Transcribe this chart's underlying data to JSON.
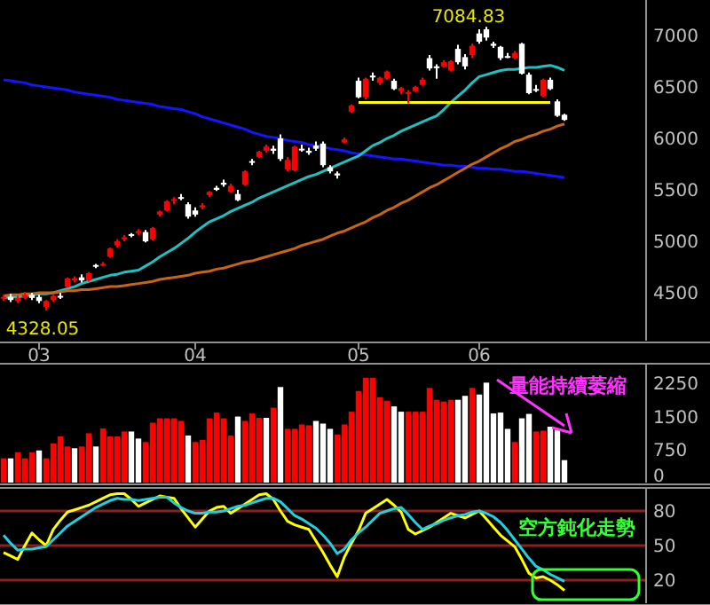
{
  "chart_data": [
    {
      "type": "candlestick",
      "categories": [
        null,
        null,
        null,
        null,
        null,
        "03",
        null,
        null,
        null,
        null,
        null,
        null,
        null,
        null,
        null,
        null,
        null,
        null,
        null,
        null,
        null,
        null,
        null,
        null,
        null,
        null,
        null,
        "04",
        null,
        null,
        null,
        null,
        null,
        null,
        null,
        null,
        null,
        null,
        null,
        null,
        null,
        null,
        null,
        null,
        null,
        null,
        null,
        null,
        null,
        null,
        "05",
        null,
        null,
        null,
        null,
        null,
        null,
        null,
        null,
        null,
        null,
        null,
        null,
        null,
        null,
        null,
        null,
        "06",
        null,
        null,
        null,
        null,
        null,
        null,
        null,
        null,
        null,
        null,
        null,
        null
      ],
      "ohlc": [
        [
          4450,
          4480,
          4420,
          4460
        ],
        [
          4460,
          4490,
          4410,
          4430
        ],
        [
          4420,
          4470,
          4400,
          4450
        ],
        [
          4450,
          4510,
          4440,
          4480
        ],
        [
          4480,
          4500,
          4430,
          4450
        ],
        [
          4460,
          4480,
          4400,
          4420
        ],
        [
          4360,
          4430,
          4328.05,
          4420
        ],
        [
          4430,
          4480,
          4410,
          4470
        ],
        [
          4470,
          4500,
          4440,
          4460
        ],
        [
          4560,
          4650,
          4550,
          4640
        ],
        [
          4620,
          4660,
          4600,
          4640
        ],
        [
          4650,
          4680,
          4600,
          4620
        ],
        [
          4620,
          4700,
          4610,
          4690
        ],
        [
          4770,
          4780,
          4740,
          4760
        ],
        [
          4770,
          4800,
          4760,
          4780
        ],
        [
          4850,
          4940,
          4840,
          4930
        ],
        [
          4960,
          5020,
          4940,
          5000
        ],
        [
          5020,
          5060,
          5000,
          5040
        ],
        [
          5070,
          5080,
          5040,
          5060
        ],
        [
          5080,
          5120,
          5060,
          5100
        ],
        [
          5090,
          5110,
          4990,
          5000
        ],
        [
          5020,
          5140,
          5010,
          5130
        ],
        [
          5260,
          5300,
          5240,
          5290
        ],
        [
          5300,
          5400,
          5290,
          5390
        ],
        [
          5400,
          5430,
          5360,
          5410
        ],
        [
          5430,
          5460,
          5400,
          5420
        ],
        [
          5360,
          5380,
          5220,
          5240
        ],
        [
          5300,
          5330,
          5240,
          5260
        ],
        [
          5330,
          5370,
          5310,
          5350
        ],
        [
          5450,
          5490,
          5430,
          5480
        ],
        [
          5520,
          5540,
          5490,
          5500
        ],
        [
          5570,
          5600,
          5530,
          5550
        ],
        [
          5480,
          5560,
          5470,
          5540
        ],
        [
          5460,
          5500,
          5390,
          5400
        ],
        [
          5550,
          5690,
          5540,
          5680
        ],
        [
          5780,
          5800,
          5740,
          5770
        ],
        [
          5820,
          5880,
          5810,
          5870
        ],
        [
          5880,
          5940,
          5860,
          5920
        ],
        [
          5900,
          5930,
          5850,
          5880
        ],
        [
          6000,
          6040,
          5780,
          5800
        ],
        [
          5700,
          5820,
          5680,
          5790
        ],
        [
          5690,
          5930,
          5680,
          5920
        ],
        [
          5900,
          5940,
          5870,
          5890
        ],
        [
          5880,
          5910,
          5840,
          5860
        ],
        [
          5930,
          5970,
          5880,
          5900
        ],
        [
          5950,
          5970,
          5720,
          5740
        ],
        [
          5720,
          5740,
          5660,
          5680
        ],
        [
          5660,
          5680,
          5610,
          5640
        ],
        [
          5960,
          6010,
          5950,
          5990
        ],
        [
          6260,
          6330,
          6250,
          6320
        ],
        [
          6560,
          6590,
          6390,
          6400
        ],
        [
          6400,
          6590,
          6380,
          6580
        ],
        [
          6610,
          6640,
          6560,
          6600
        ],
        [
          6540,
          6600,
          6520,
          6590
        ],
        [
          6580,
          6660,
          6570,
          6650
        ],
        [
          6560,
          6580,
          6470,
          6480
        ],
        [
          6460,
          6500,
          6430,
          6490
        ],
        [
          6440,
          6470,
          6340,
          6450
        ],
        [
          6460,
          6510,
          6450,
          6500
        ],
        [
          6520,
          6590,
          6510,
          6570
        ],
        [
          6780,
          6810,
          6660,
          6680
        ],
        [
          6700,
          6720,
          6580,
          6690
        ],
        [
          6700,
          6760,
          6690,
          6740
        ],
        [
          6660,
          6760,
          6650,
          6750
        ],
        [
          6870,
          6910,
          6720,
          6740
        ],
        [
          6790,
          6820,
          6670,
          6700
        ],
        [
          6810,
          6920,
          6780,
          6900
        ],
        [
          7020,
          7060,
          6920,
          6940
        ],
        [
          7060,
          7084.83,
          6950,
          6980
        ],
        [
          6920,
          6940,
          6880,
          6900
        ],
        [
          6890,
          6900,
          6760,
          6780
        ],
        [
          6800,
          6830,
          6780,
          6790
        ],
        [
          6780,
          6850,
          6770,
          6830
        ],
        [
          6920,
          6930,
          6620,
          6630
        ],
        [
          6620,
          6640,
          6430,
          6440
        ],
        [
          6480,
          6520,
          6450,
          6470
        ],
        [
          6410,
          6580,
          6400,
          6570
        ],
        [
          6570,
          6590,
          6470,
          6480
        ],
        [
          6360,
          6380,
          6210,
          6220
        ],
        [
          6230,
          6240,
          6170,
          6180
        ]
      ],
      "series": [
        {
          "type": "line",
          "color": "#1414ff",
          "values": [
            6570,
            6560,
            6550,
            6540,
            6520,
            6510,
            6500,
            6490,
            6480,
            6470,
            6450,
            6440,
            6430,
            6420,
            6410,
            6400,
            6380,
            6370,
            6360,
            6350,
            6340,
            6330,
            6310,
            6300,
            6290,
            6280,
            6260,
            6240,
            6210,
            6190,
            6170,
            6150,
            6130,
            6110,
            6090,
            6060,
            6040,
            6020,
            6010,
            6000,
            5980,
            5970,
            5960,
            5940,
            5930,
            5920,
            5900,
            5890,
            5880,
            5860,
            5850,
            5840,
            5830,
            5820,
            5810,
            5800,
            5800,
            5790,
            5780,
            5770,
            5760,
            5750,
            5740,
            5740,
            5730,
            5730,
            5720,
            5710,
            5710,
            5700,
            5700,
            5690,
            5680,
            5680,
            5670,
            5660,
            5650,
            5640,
            5630,
            5620
          ]
        },
        {
          "type": "line",
          "color": "#20c0c0",
          "values": [
            4450,
            4460,
            4460,
            4470,
            4480,
            4490,
            4490,
            4500,
            4520,
            4540,
            4560,
            4590,
            4610,
            4630,
            4650,
            4670,
            4680,
            4700,
            4710,
            4720,
            4760,
            4800,
            4850,
            4890,
            4930,
            4980,
            5030,
            5090,
            5140,
            5190,
            5220,
            5250,
            5290,
            5320,
            5350,
            5380,
            5420,
            5450,
            5480,
            5510,
            5540,
            5570,
            5600,
            5630,
            5650,
            5680,
            5710,
            5740,
            5770,
            5800,
            5830,
            5880,
            5930,
            5960,
            6000,
            6030,
            6070,
            6100,
            6130,
            6160,
            6190,
            6220,
            6280,
            6350,
            6410,
            6470,
            6540,
            6600,
            6620,
            6640,
            6660,
            6670,
            6670,
            6680,
            6690,
            6690,
            6700,
            6710,
            6690,
            6660
          ]
        },
        {
          "type": "line",
          "color": "#c86414",
          "values": [
            4470,
            4480,
            4480,
            4490,
            4490,
            4500,
            4500,
            4500,
            4510,
            4520,
            4520,
            4530,
            4530,
            4540,
            4550,
            4560,
            4560,
            4570,
            4580,
            4590,
            4600,
            4610,
            4630,
            4640,
            4650,
            4660,
            4670,
            4690,
            4700,
            4710,
            4730,
            4740,
            4760,
            4780,
            4800,
            4810,
            4830,
            4850,
            4870,
            4890,
            4910,
            4930,
            4960,
            4980,
            5000,
            5020,
            5050,
            5080,
            5100,
            5130,
            5160,
            5190,
            5230,
            5260,
            5300,
            5330,
            5370,
            5400,
            5440,
            5480,
            5520,
            5550,
            5590,
            5630,
            5670,
            5710,
            5750,
            5780,
            5820,
            5860,
            5900,
            5930,
            5970,
            5990,
            6020,
            6040,
            6070,
            6090,
            6120,
            6140
          ]
        },
        {
          "type": "line",
          "color": "#ffff00",
          "values": [
            null,
            null,
            null,
            null,
            null,
            null,
            null,
            null,
            null,
            null,
            null,
            null,
            null,
            null,
            null,
            null,
            null,
            null,
            null,
            null,
            null,
            null,
            null,
            null,
            null,
            null,
            null,
            null,
            null,
            null,
            null,
            null,
            null,
            null,
            null,
            null,
            null,
            null,
            null,
            null,
            null,
            null,
            null,
            null,
            null,
            null,
            null,
            null,
            null,
            null,
            6350,
            6350,
            6350,
            6350,
            6350,
            6350,
            6350,
            6350,
            6350,
            6350,
            6350,
            6350,
            6350,
            6350,
            6350,
            6350,
            6350,
            6350,
            6350,
            6350,
            6350,
            6350,
            6350,
            6350,
            6350,
            6350,
            6350,
            6350,
            null,
            null
          ]
        }
      ],
      "ylim": [
        4035,
        7345
      ],
      "yticks": [
        4500,
        5000,
        5500,
        6000,
        6500,
        7000
      ],
      "annotations": [
        {
          "text": "7084.83",
          "x": "06",
          "y": 7084.83
        },
        {
          "text": "4328.05",
          "x": "03",
          "y": 4328.05
        }
      ]
    },
    {
      "type": "bar",
      "categories": [
        null,
        null,
        null,
        null,
        null,
        null,
        null,
        null,
        null,
        null,
        null,
        null,
        null,
        null,
        null,
        null,
        null,
        null,
        null,
        null,
        null,
        null,
        null,
        null,
        null,
        null,
        null,
        null,
        null,
        null,
        null,
        null,
        null,
        null,
        null,
        null,
        null,
        null,
        null,
        null,
        null,
        null,
        null,
        null,
        null,
        null,
        null,
        null,
        null,
        null,
        null,
        null,
        null,
        null,
        null,
        null,
        null,
        null,
        null,
        null,
        null,
        null,
        null,
        null,
        null,
        null,
        null,
        null,
        null,
        null,
        null,
        null,
        null,
        null,
        null,
        null,
        null,
        null,
        null,
        null
      ],
      "values": [
        550,
        550,
        690,
        550,
        690,
        730,
        550,
        890,
        1050,
        820,
        780,
        820,
        1120,
        820,
        1230,
        1050,
        1050,
        1160,
        1160,
        1000,
        920,
        1360,
        1460,
        1460,
        1460,
        1400,
        1070,
        920,
        970,
        1460,
        1590,
        1460,
        1070,
        1500,
        1400,
        1570,
        1470,
        1470,
        1700,
        2170,
        1220,
        1220,
        1320,
        1300,
        1400,
        1340,
        1220,
        1090,
        1320,
        1610,
        2080,
        2380,
        2380,
        1940,
        1860,
        1730,
        1610,
        1610,
        1610,
        1610,
        2150,
        1880,
        1840,
        1880,
        1880,
        1970,
        2150,
        2000,
        2270,
        1570,
        1590,
        1220,
        920,
        1460,
        1560,
        1160,
        1180,
        1270,
        1200,
        510
      ],
      "colors": [
        "#ff0000",
        "#ffffff",
        "#ff0000",
        "#ff0000",
        "#ff0000",
        "#ffffff",
        "#ff0000",
        "#ff0000",
        "#ff0000",
        "#ff0000",
        "#ffffff",
        "#ff0000",
        "#ff0000",
        "#ffffff",
        "#ff0000",
        "#ff0000",
        "#ff0000",
        "#ff0000",
        "#ffffff",
        "#ffffff",
        "#ff0000",
        "#ff0000",
        "#ff0000",
        "#ff0000",
        "#ff0000",
        "#ff0000",
        "#ffffff",
        "#ff0000",
        "#ff0000",
        "#ff0000",
        "#ff0000",
        "#ff0000",
        "#ff0000",
        "#ffffff",
        "#ff0000",
        "#ff0000",
        "#ff0000",
        "#ffffff",
        "#ff0000",
        "#ffffff",
        "#ff0000",
        "#ff0000",
        "#ff0000",
        "#ff0000",
        "#ffffff",
        "#ffffff",
        "#ffffff",
        "#ff0000",
        "#ff0000",
        "#ff0000",
        "#ff0000",
        "#ff0000",
        "#ff0000",
        "#ff0000",
        "#ff0000",
        "#ffffff",
        "#ffffff",
        "#ff0000",
        "#ff0000",
        "#ff0000",
        "#ff0000",
        "#ff0000",
        "#ff0000",
        "#ff0000",
        "#ffffff",
        "#ffffff",
        "#ff0000",
        "#ffffff",
        "#ffffff",
        "#ffffff",
        "#ffffff",
        "#ffffff",
        "#ff0000",
        "#ffffff",
        "#ffffff",
        "#ff0000",
        "#ff0000",
        "#ffffff",
        "#ffffff",
        "#ffffff"
      ],
      "ylim": [
        0,
        2700
      ],
      "yticks": [
        0,
        750,
        1500,
        2250
      ],
      "tick_labels": "y",
      "annotations": [
        "量能持續萎縮"
      ]
    },
    {
      "type": "line",
      "categories": [
        null,
        null,
        null,
        null,
        null,
        null,
        null,
        null,
        null,
        null,
        null,
        null,
        null,
        null,
        null,
        null,
        null,
        null,
        null,
        null,
        null,
        null,
        null,
        null,
        null,
        null,
        null,
        null,
        null,
        null,
        null,
        null,
        null,
        null,
        null,
        null,
        null,
        null,
        null,
        null,
        null,
        null,
        null,
        null,
        null,
        null,
        null,
        null,
        null,
        null,
        null,
        null,
        null,
        null,
        null,
        null,
        null,
        null,
        null,
        null,
        null,
        null,
        null,
        null,
        null,
        null,
        null,
        null,
        null,
        null,
        null,
        null,
        null,
        null,
        null,
        null,
        null,
        null,
        null,
        null
      ],
      "series": [
        {
          "color": "#ffff00",
          "values": [
            44,
            41,
            38,
            50,
            61,
            55,
            50,
            64,
            72,
            79,
            81,
            83,
            85,
            88,
            91,
            94,
            95,
            95,
            90,
            84,
            87,
            90,
            93,
            92,
            91,
            82,
            74,
            66,
            73,
            80,
            83,
            84,
            78,
            82,
            86,
            90,
            94,
            95,
            90,
            80,
            71,
            68,
            66,
            64,
            54,
            44,
            33,
            23,
            40,
            52,
            63,
            78,
            82,
            86,
            90,
            85,
            79,
            64,
            60,
            63,
            66,
            70,
            74,
            78,
            76,
            74,
            77,
            80,
            73,
            66,
            59,
            54,
            49,
            38,
            26,
            22,
            23,
            20,
            16,
            11
          ]
        },
        {
          "color": "#20d0e0",
          "values": [
            59,
            52,
            46,
            47,
            47,
            48,
            49,
            55,
            61,
            67,
            71,
            75,
            79,
            83,
            86,
            89,
            91,
            90,
            90,
            89,
            90,
            91,
            92,
            92,
            87,
            83,
            80,
            78,
            78,
            79,
            79,
            80,
            82,
            84,
            85,
            87,
            89,
            91,
            91,
            88,
            82,
            76,
            73,
            69,
            65,
            59,
            52,
            43,
            47,
            55,
            61,
            66,
            72,
            78,
            80,
            82,
            83,
            77,
            70,
            64,
            67,
            69,
            72,
            74,
            76,
            77,
            79,
            80,
            78,
            75,
            70,
            63,
            55,
            47,
            39,
            32,
            29,
            25,
            22,
            19
          ]
        }
      ],
      "ylim": [
        0,
        100
      ],
      "yticks": [
        20,
        50,
        80
      ],
      "grid": "y",
      "tick_labels": "y",
      "annotations": [
        "空方鈍化走勢"
      ]
    }
  ]
}
